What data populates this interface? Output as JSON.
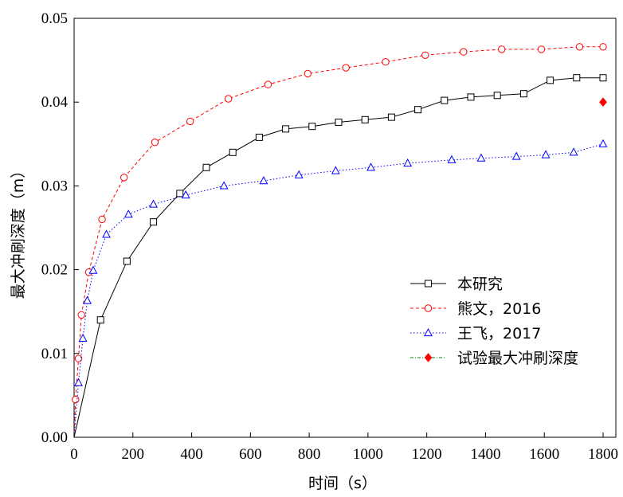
{
  "chart_data": {
    "type": "line",
    "xlabel": "时间（s）",
    "ylabel": "最大冲刷深度（m）",
    "xlim": [
      0,
      1800
    ],
    "ylim": [
      0,
      0.05
    ],
    "xticks": [
      0,
      200,
      400,
      600,
      800,
      1000,
      1200,
      1400,
      1600,
      1800
    ],
    "yticks": [
      0.0,
      0.01,
      0.02,
      0.03,
      0.04,
      0.05
    ],
    "xtick_labels": [
      "0",
      "200",
      "400",
      "600",
      "800",
      "1000",
      "1200",
      "1400",
      "1600",
      "1800"
    ],
    "ytick_labels": [
      "0.00",
      "0.01",
      "0.02",
      "0.03",
      "0.04",
      "0.05"
    ],
    "grid": false,
    "legend_position": "bottom-right",
    "series": [
      {
        "name": "本研究",
        "color": "#000000",
        "line": "solid",
        "marker": "square",
        "x": [
          0,
          90,
          180,
          270,
          360,
          450,
          540,
          630,
          720,
          810,
          900,
          990,
          1080,
          1170,
          1260,
          1350,
          1440,
          1530,
          1620,
          1710,
          1800
        ],
        "y": [
          0.0,
          0.014,
          0.021,
          0.0257,
          0.0291,
          0.0322,
          0.034,
          0.0358,
          0.0368,
          0.0371,
          0.0376,
          0.0379,
          0.0382,
          0.0391,
          0.0402,
          0.0406,
          0.0408,
          0.041,
          0.0426,
          0.0429,
          0.0429
        ]
      },
      {
        "name": "熊文，2016",
        "color": "#ff0000",
        "line": "dashed",
        "marker": "circle",
        "x": [
          0,
          5,
          15,
          25,
          50,
          95,
          170,
          275,
          395,
          525,
          660,
          795,
          925,
          1060,
          1195,
          1325,
          1455,
          1590,
          1720,
          1800
        ],
        "y": [
          0.0,
          0.0045,
          0.0094,
          0.0146,
          0.0197,
          0.026,
          0.031,
          0.0352,
          0.0377,
          0.0404,
          0.0421,
          0.0434,
          0.0441,
          0.0448,
          0.0456,
          0.046,
          0.0463,
          0.0463,
          0.0466,
          0.0466
        ]
      },
      {
        "name": "王飞，2017",
        "color": "#0000ff",
        "line": "dotted",
        "marker": "triangle",
        "x": [
          0,
          15,
          30,
          45,
          65,
          110,
          185,
          270,
          380,
          510,
          645,
          765,
          890,
          1010,
          1135,
          1285,
          1385,
          1505,
          1605,
          1700,
          1800
        ],
        "y": [
          0.0,
          0.0065,
          0.0118,
          0.0163,
          0.0199,
          0.0242,
          0.0266,
          0.0278,
          0.0289,
          0.03,
          0.0306,
          0.0313,
          0.0318,
          0.0322,
          0.0327,
          0.0331,
          0.0333,
          0.0335,
          0.0337,
          0.034,
          0.035
        ]
      },
      {
        "name": "试验最大冲刷深度",
        "color": "#ff0000",
        "line": "dash-dot",
        "line_color": "#008000",
        "marker": "diamond",
        "x": [
          1800
        ],
        "y": [
          0.04
        ]
      }
    ]
  }
}
